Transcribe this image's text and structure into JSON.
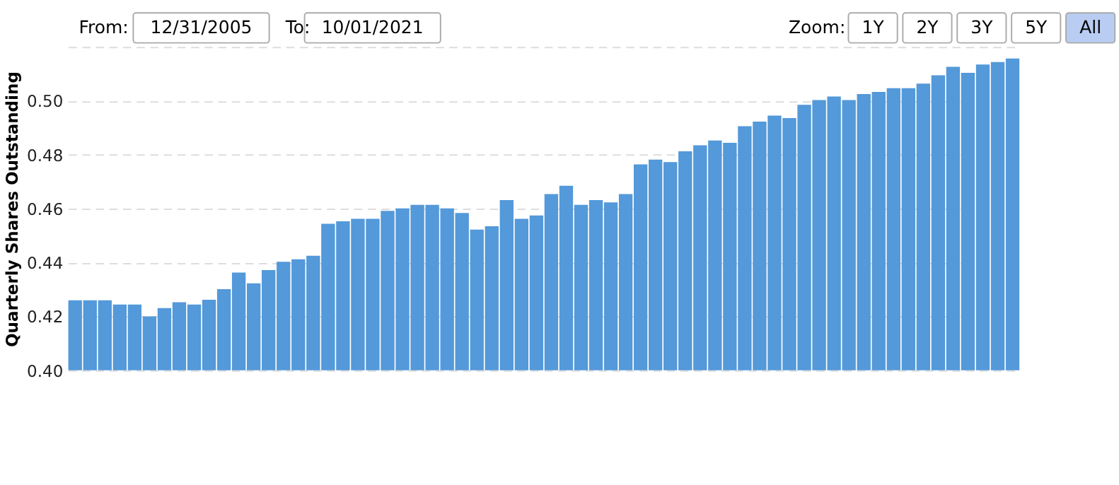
{
  "chart_data": {
    "type": "bar",
    "ylabel": "Quarterly Shares Outstanding",
    "categories": [
      null,
      null,
      null,
      null,
      null,
      null,
      null,
      null,
      null,
      null,
      null,
      null,
      null,
      null,
      null,
      null,
      null,
      null,
      null,
      null,
      null,
      null,
      null,
      null,
      null,
      null,
      null,
      null,
      null,
      null,
      null,
      null,
      null,
      null,
      null,
      null,
      null,
      null,
      null,
      null,
      null,
      null,
      null,
      null,
      null,
      null,
      null,
      null,
      null,
      null,
      null,
      null,
      null,
      null,
      null,
      null,
      null,
      null,
      null,
      null,
      null,
      null,
      null,
      null
    ],
    "values": [
      0.426,
      0.426,
      0.426,
      0.4244,
      0.4244,
      0.42,
      0.4231,
      0.4253,
      0.4244,
      0.4262,
      0.4301,
      0.4363,
      0.4323,
      0.4372,
      0.4403,
      0.4412,
      0.4425,
      0.4544,
      0.4553,
      0.4562,
      0.4562,
      0.4592,
      0.4601,
      0.4614,
      0.4614,
      0.4601,
      0.4584,
      0.4522,
      0.4535,
      0.4632,
      0.4562,
      0.4575,
      0.4654,
      0.4685,
      0.4614,
      0.4632,
      0.4623,
      0.4654,
      0.4764,
      0.4782,
      0.4773,
      0.4813,
      0.4835,
      0.4853,
      0.4844,
      0.4906,
      0.4923,
      0.4945,
      0.4936,
      0.4985,
      0.5003,
      0.5016,
      0.5003,
      0.5025,
      0.5033,
      0.5047,
      0.5047,
      0.5064,
      0.5095,
      0.5126,
      0.5104,
      0.5135,
      0.5144,
      0.5157
    ],
    "color": "#5499d9",
    "ylim": [
      0.4,
      0.52
    ],
    "yticks": [
      {
        "value": 0.4,
        "label": "0.40"
      },
      0.42,
      0.44,
      0.46,
      0.48,
      {
        "value": 0.5,
        "label": "0.50"
      },
      {
        "value": 0.52,
        "label": null
      }
    ],
    "grid": "y",
    "tick_labels": "y",
    "annotations": [
      "From:",
      "12/31/2005",
      "To:",
      "10/01/2021",
      "Zoom:",
      "1Y",
      "2Y",
      "3Y",
      "5Y",
      "All"
    ]
  }
}
